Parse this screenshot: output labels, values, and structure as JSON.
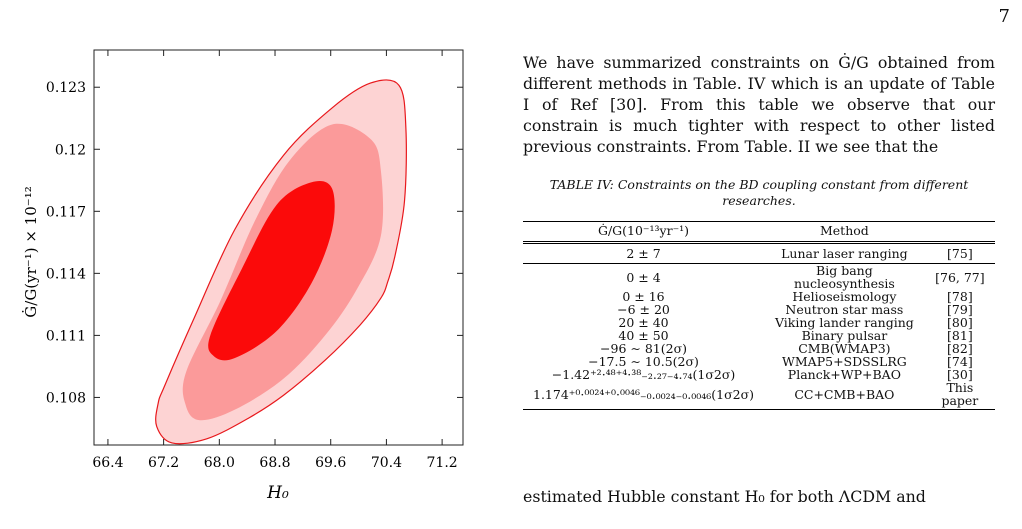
{
  "page": {
    "number": "7"
  },
  "figure": {
    "chart_data": {
      "type": "contour",
      "xlabel": "H₀",
      "ylabel": "Ġ/G(yr⁻¹) × 10⁻¹²",
      "xlim": [
        66.2,
        71.5
      ],
      "ylim": [
        0.1057,
        0.1248
      ],
      "xticks": [
        "66.4",
        "67.2",
        "68.0",
        "68.8",
        "69.6",
        "70.4",
        "71.2"
      ],
      "yticks": [
        "0.108",
        "0.111",
        "0.114",
        "0.117",
        "0.12",
        "0.123"
      ],
      "contours": [
        {
          "level": "3 sigma",
          "color": "#fdd3d3",
          "points": [
            [
              67.12,
              0.1077
            ],
            [
              67.22,
              0.1086
            ],
            [
              67.62,
              0.1117
            ],
            [
              68.22,
              0.1161
            ],
            [
              68.92,
              0.1197
            ],
            [
              69.62,
              0.122
            ],
            [
              70.17,
              0.1232
            ],
            [
              70.58,
              0.1231
            ],
            [
              70.68,
              0.121
            ],
            [
              70.66,
              0.1175
            ],
            [
              70.52,
              0.1148
            ],
            [
              70.42,
              0.1136
            ],
            [
              70.32,
              0.1128
            ],
            [
              70.02,
              0.1115
            ],
            [
              69.52,
              0.1098
            ],
            [
              68.92,
              0.1081
            ],
            [
              68.42,
              0.107
            ],
            [
              67.82,
              0.106
            ],
            [
              67.32,
              0.1058
            ],
            [
              67.1,
              0.1066
            ]
          ]
        },
        {
          "level": "2 sigma",
          "color": "#fb9a9a",
          "points": [
            [
              67.52,
              0.1092
            ],
            [
              68.02,
              0.1127
            ],
            [
              68.52,
              0.1166
            ],
            [
              69.02,
              0.1195
            ],
            [
              69.62,
              0.1212
            ],
            [
              70.17,
              0.1205
            ],
            [
              70.32,
              0.119
            ],
            [
              70.32,
              0.1158
            ],
            [
              69.97,
              0.1132
            ],
            [
              69.52,
              0.111
            ],
            [
              68.92,
              0.1089
            ],
            [
              68.22,
              0.1074
            ],
            [
              67.72,
              0.1069
            ],
            [
              67.52,
              0.1076
            ]
          ]
        },
        {
          "level": "1 sigma",
          "color": "#fb0a0a",
          "points": [
            [
              67.87,
              0.111
            ],
            [
              68.32,
              0.1142
            ],
            [
              68.82,
              0.1173
            ],
            [
              69.32,
              0.1184
            ],
            [
              69.62,
              0.1181
            ],
            [
              69.62,
              0.1161
            ],
            [
              69.32,
              0.1135
            ],
            [
              68.82,
              0.1112
            ],
            [
              68.22,
              0.1099
            ],
            [
              67.92,
              0.11
            ]
          ]
        }
      ],
      "outline_color": "#e8181c"
    }
  },
  "text": {
    "para1": "We have summarized constraints on Ġ/G obtained from different methods in Table. IV which is an update of Table I of Ref [30]. From this table we observe that our constrain is much tighter with respect to other listed previous constraints. From Table. II we see that the",
    "caption": "TABLE IV: Constraints on the BD coupling constant from different researches.",
    "para2": "estimated Hubble constant H₀ for both ΛCDM and"
  },
  "table": {
    "headers": [
      "Ġ/G(10⁻¹³yr⁻¹)",
      "Method",
      ""
    ],
    "rows": [
      [
        "2 ± 7",
        "Lunar laser ranging",
        "[75]"
      ],
      [
        "0 ± 4",
        "Big bang nucleosynthesis",
        "[76, 77]"
      ],
      [
        "0 ± 16",
        "Helioseismology",
        "[78]"
      ],
      [
        "−6 ± 20",
        "Neutron star mass",
        "[79]"
      ],
      [
        "20 ± 40",
        "Viking lander ranging",
        "[80]"
      ],
      [
        "40 ± 50",
        "Binary pulsar",
        "[81]"
      ],
      [
        "−96 ∼ 81(2σ)",
        "CMB(WMAP3)",
        "[82]"
      ],
      [
        "−17.5 ∼ 10.5(2σ)",
        "WMAP5+SDSSLRG",
        "[74]"
      ],
      [
        "−1.42⁺²·⁴⁸⁺⁴·³⁸₋₂.₂₇₋₄.₇₄(1σ2σ)",
        "Planck+WP+BAO",
        "[30]"
      ],
      [
        "1.174⁺⁰·⁰⁰²⁴⁺⁰·⁰⁰⁴⁶₋₀.₀₀₂₄₋₀.₀₀₄₆(1σ2σ)",
        "CC+CMB+BAO",
        "This paper"
      ]
    ]
  }
}
